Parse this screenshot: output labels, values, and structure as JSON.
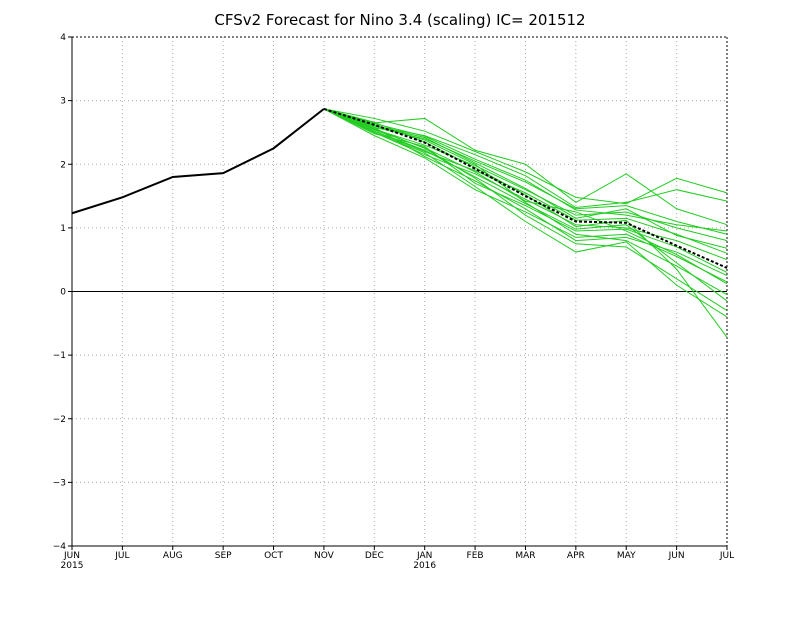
{
  "chart_data": {
    "type": "line",
    "title": "CFSv2 Forecast for Nino 3.4 (scaling)  IC= 201512",
    "x_categories": [
      "JUN",
      "JUL",
      "AUG",
      "SEP",
      "OCT",
      "NOV",
      "DEC",
      "JAN",
      "FEB",
      "MAR",
      "APR",
      "MAY",
      "JUN",
      "JUL"
    ],
    "x_year_labels": [
      {
        "index": 0,
        "label": "2015"
      },
      {
        "index": 7,
        "label": "2016"
      }
    ],
    "ylim": [
      -4,
      4
    ],
    "yticks": [
      -4,
      -3,
      -2,
      -1,
      0,
      1,
      2,
      3,
      4
    ],
    "grid": true,
    "zero_line": true,
    "colors": {
      "observed": "#000000",
      "ensemble": "#22cc22",
      "ensemble_mean": "#000000",
      "grid": "#aaaaaa"
    },
    "observed": {
      "x": [
        0,
        1,
        2,
        3,
        4,
        5
      ],
      "y": [
        1.23,
        1.48,
        1.8,
        1.86,
        2.25,
        2.87
      ]
    },
    "ensemble_mean": {
      "x": [
        5,
        6,
        7,
        8,
        9,
        10,
        11,
        12,
        13
      ],
      "y": [
        2.87,
        2.62,
        2.34,
        1.93,
        1.5,
        1.1,
        1.08,
        0.72,
        0.37
      ]
    },
    "ensemble_members": [
      [
        2.87,
        2.72,
        2.52,
        2.2,
        1.88,
        1.48,
        1.38,
        1.78,
        1.55
      ],
      [
        2.87,
        2.65,
        2.72,
        2.22,
        2.0,
        1.4,
        1.85,
        1.3,
        1.05
      ],
      [
        2.87,
        2.6,
        2.45,
        2.15,
        1.82,
        1.32,
        1.4,
        1.6,
        1.42
      ],
      [
        2.87,
        2.58,
        2.4,
        2.05,
        1.72,
        1.3,
        1.35,
        1.1,
        0.9
      ],
      [
        2.87,
        2.55,
        2.3,
        1.98,
        1.6,
        1.2,
        1.25,
        1.0,
        0.8
      ],
      [
        2.87,
        2.52,
        2.2,
        1.9,
        1.55,
        1.12,
        1.15,
        0.9,
        0.6
      ],
      [
        2.87,
        2.5,
        2.15,
        1.85,
        1.45,
        1.05,
        1.0,
        0.8,
        0.5
      ],
      [
        2.87,
        2.48,
        2.28,
        1.7,
        1.35,
        0.95,
        0.98,
        0.7,
        0.3
      ],
      [
        2.87,
        2.45,
        2.1,
        1.6,
        1.25,
        0.85,
        0.9,
        0.55,
        0.15
      ],
      [
        2.87,
        2.62,
        2.38,
        2.0,
        1.4,
        0.9,
        0.8,
        0.4,
        -0.05
      ],
      [
        2.87,
        2.56,
        2.25,
        1.78,
        1.2,
        0.75,
        0.7,
        0.2,
        -0.3
      ],
      [
        2.87,
        2.5,
        2.18,
        1.65,
        1.1,
        0.62,
        0.78,
        0.1,
        -0.4
      ],
      [
        2.87,
        2.66,
        2.35,
        1.95,
        1.52,
        1.02,
        1.12,
        0.35,
        -0.72
      ],
      [
        2.87,
        2.54,
        2.26,
        1.88,
        1.42,
        1.25,
        0.95,
        0.58,
        0.12
      ],
      [
        2.87,
        2.6,
        2.42,
        2.02,
        1.62,
        1.15,
        1.3,
        0.88,
        0.68
      ],
      [
        2.87,
        2.58,
        2.12,
        1.74,
        1.3,
        0.8,
        0.85,
        0.62,
        0.25
      ],
      [
        2.87,
        2.64,
        2.44,
        2.08,
        1.75,
        1.28,
        1.2,
        1.05,
        0.95
      ],
      [
        2.87,
        2.52,
        2.22,
        1.8,
        1.38,
        0.98,
        1.05,
        0.45,
        -0.15
      ]
    ]
  }
}
